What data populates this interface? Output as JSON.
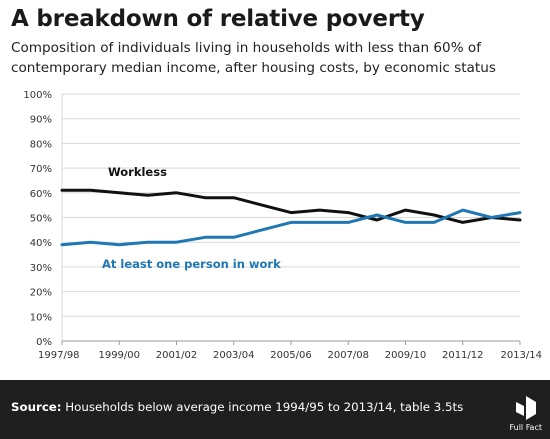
{
  "header": {
    "title": "A breakdown of relative poverty",
    "subtitle": "Composition of individuals living in households with less than 60% of contemporary median income, after housing costs, by economic status"
  },
  "chart_data": {
    "type": "line",
    "x": [
      "1997/98",
      "1998/99",
      "1999/00",
      "2000/01",
      "2001/02",
      "2002/03",
      "2003/04",
      "2004/05",
      "2005/06",
      "2006/07",
      "2007/08",
      "2008/09",
      "2009/10",
      "2010/11",
      "2011/12",
      "2012/13",
      "2013/14"
    ],
    "x_tick_labels": [
      "1997/98",
      "1999/00",
      "2001/02",
      "2003/04",
      "2005/06",
      "2007/08",
      "2009/10",
      "2011/12",
      "2013/14"
    ],
    "y_tick_labels": [
      "0%",
      "10%",
      "20%",
      "30%",
      "40%",
      "50%",
      "60%",
      "70%",
      "80%",
      "90%",
      "100%"
    ],
    "ylim": [
      0,
      100
    ],
    "grid": "horizontal",
    "series": [
      {
        "name": "Workless",
        "color": "#111111",
        "values": [
          61,
          61,
          60,
          59,
          60,
          58,
          58,
          55,
          52,
          53,
          52,
          49,
          53,
          51,
          48,
          50,
          49
        ]
      },
      {
        "name": "At least one person in work",
        "color": "#1f77b4",
        "values": [
          39,
          40,
          39,
          40,
          40,
          42,
          42,
          45,
          48,
          48,
          48,
          51,
          48,
          48,
          53,
          50,
          52
        ]
      }
    ]
  },
  "footer": {
    "source_label": "Source:",
    "source_text": "Households below average income 1994/95 to 2013/14, table 3.5ts",
    "logo_text": "Full Fact"
  }
}
